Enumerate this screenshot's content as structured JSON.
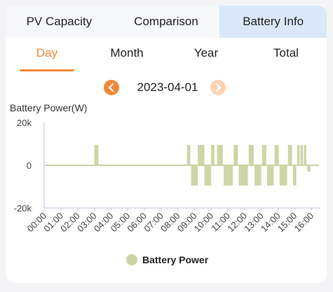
{
  "top_tabs": [
    {
      "label": "PV Capacity"
    },
    {
      "label": "Comparison"
    },
    {
      "label": "Battery Info"
    }
  ],
  "period_tabs": [
    {
      "label": "Day"
    },
    {
      "label": "Month"
    },
    {
      "label": "Year"
    },
    {
      "label": "Total"
    }
  ],
  "active_top_tab": "Battery Info",
  "active_period_tab": "Day",
  "date": "2023-04-01",
  "icons": {
    "prev": "chevron-left-icon",
    "next": "chevron-right-icon"
  },
  "colors": {
    "accent": "#f0883a",
    "series": "#ccd3a2",
    "active_tab_bg": "#dbe8fb"
  },
  "chart_data": {
    "type": "bar",
    "ylabel": "Battery Power(W)",
    "ylim": [
      -20000,
      20000
    ],
    "yticks": [
      {
        "value": 20000,
        "label": "20k"
      },
      {
        "value": 0,
        "label": "0"
      },
      {
        "value": -20000,
        "label": "-20k"
      }
    ],
    "xlim": [
      0,
      16.5
    ],
    "xticks": [
      "00:00",
      "01:00",
      "02:00",
      "03:00",
      "04:00",
      "05:00",
      "06:00",
      "07:00",
      "08:00",
      "09:00",
      "10:00",
      "11:00",
      "12:00",
      "13:00",
      "14:00",
      "15:00",
      "16:00"
    ],
    "legend": "bottom-center",
    "series": [
      {
        "name": "Battery Power",
        "baseline": 300,
        "bursts": [
          {
            "start": 3.0,
            "end": 3.25,
            "value": 9500
          },
          {
            "start": 8.55,
            "end": 8.75,
            "value": 9500
          },
          {
            "start": 8.8,
            "end": 9.2,
            "value": -9500
          },
          {
            "start": 9.2,
            "end": 9.6,
            "value": 9500
          },
          {
            "start": 9.6,
            "end": 10.0,
            "value": -9500
          },
          {
            "start": 10.0,
            "end": 10.2,
            "value": 9500
          },
          {
            "start": 10.35,
            "end": 10.7,
            "value": 9500
          },
          {
            "start": 10.75,
            "end": 11.3,
            "value": -9500
          },
          {
            "start": 11.35,
            "end": 11.6,
            "value": 9500
          },
          {
            "start": 11.65,
            "end": 12.2,
            "value": -9500
          },
          {
            "start": 12.25,
            "end": 12.55,
            "value": 9500
          },
          {
            "start": 12.6,
            "end": 13.0,
            "value": -9500
          },
          {
            "start": 13.05,
            "end": 13.3,
            "value": 9500
          },
          {
            "start": 13.35,
            "end": 13.75,
            "value": -9500
          },
          {
            "start": 13.8,
            "end": 14.05,
            "value": 9500
          },
          {
            "start": 14.1,
            "end": 14.55,
            "value": -9500
          },
          {
            "start": 14.6,
            "end": 14.85,
            "value": 9500
          },
          {
            "start": 14.9,
            "end": 15.1,
            "value": -9500
          },
          {
            "start": 15.15,
            "end": 15.3,
            "value": 9500
          },
          {
            "start": 15.35,
            "end": 15.5,
            "value": 9500
          },
          {
            "start": 15.55,
            "end": 15.7,
            "value": 9500
          },
          {
            "start": 15.75,
            "end": 15.95,
            "value": -3000
          }
        ]
      }
    ]
  }
}
